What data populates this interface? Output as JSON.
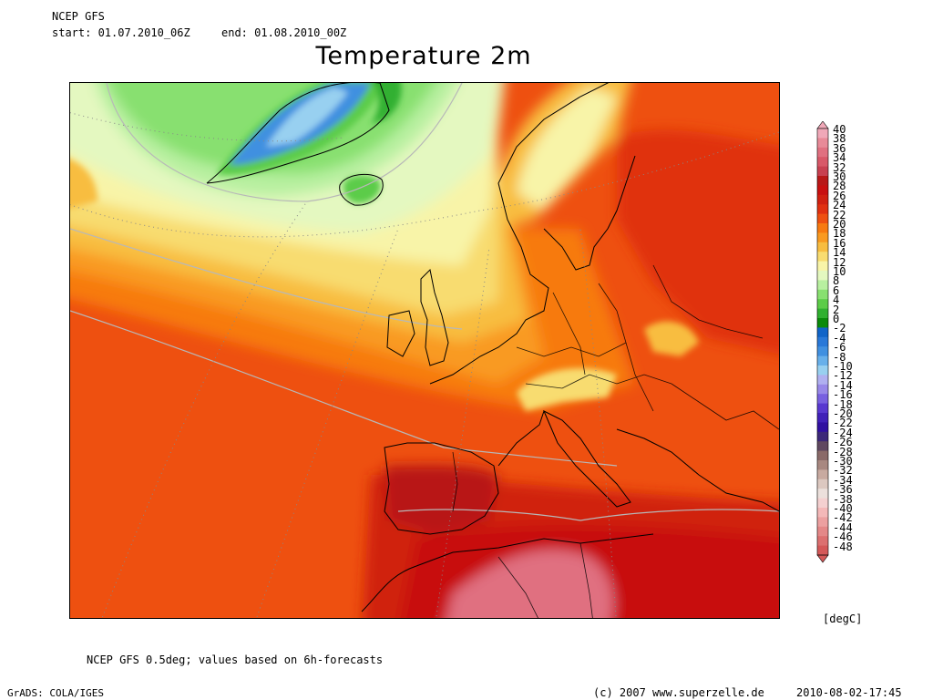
{
  "header": {
    "model": "NCEP GFS",
    "start": "start: 01.07.2010_06Z",
    "end": "end: 01.08.2010_00Z",
    "title": "Temperature 2m"
  },
  "map": {
    "region": "North Atlantic and Europe",
    "variable": "2m temperature mean",
    "landmasses": [
      "Greenland",
      "Iceland",
      "Scandinavia",
      "British Isles",
      "Iberia",
      "Central Europe",
      "Italy",
      "Balkans",
      "North Africa"
    ]
  },
  "legend": {
    "labels": [
      "40",
      "38",
      "36",
      "34",
      "32",
      "30",
      "28",
      "26",
      "24",
      "22",
      "20",
      "18",
      "16",
      "14",
      "12",
      "10",
      "8",
      "6",
      "4",
      "2",
      "0",
      "-2",
      "-4",
      "-6",
      "-8",
      "-10",
      "-12",
      "-14",
      "-16",
      "-18",
      "-20",
      "-22",
      "-24",
      "-26",
      "-28",
      "-30",
      "-32",
      "-34",
      "-36",
      "-38",
      "-40",
      "-42",
      "-44",
      "-46",
      "-48"
    ],
    "colors": [
      "#f0a8b8",
      "#e88a98",
      "#e07080",
      "#d85868",
      "#c84050",
      "#b81818",
      "#c81010",
      "#d02010",
      "#e03010",
      "#ee5010",
      "#f77a10",
      "#f99a20",
      "#f8bd40",
      "#f8dc70",
      "#f8f4a8",
      "#e4f8c0",
      "#b8f0a0",
      "#88e070",
      "#5ccc48",
      "#30b030",
      "#0a8a0a",
      "#1064c8",
      "#2878d8",
      "#4090e0",
      "#68b0ea",
      "#98d0f0",
      "#b0b0f0",
      "#9888e8",
      "#7860e0",
      "#5838d0",
      "#4020b8",
      "#3010a0",
      "#3c2878",
      "#604860",
      "#8a6a68",
      "#a88880",
      "#c8aaa0",
      "#dcc8c0",
      "#ece0dc",
      "#f4d0d0",
      "#f4b8b8",
      "#eca0a0",
      "#e48888",
      "#dc7070",
      "#d45858"
    ],
    "unit": "[degC]"
  },
  "footer": {
    "note": "NCEP GFS 0.5deg; values based on 6h-forecasts",
    "grads": "GrADS: COLA/IGES",
    "copyright": "(c) 2007 www.superzelle.de",
    "timestamp": "2010-08-02-17:45"
  }
}
